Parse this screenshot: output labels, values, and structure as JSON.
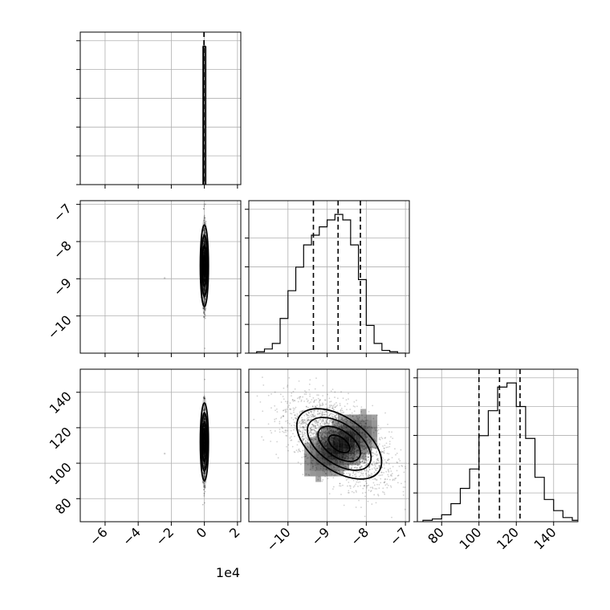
{
  "figure": {
    "offset_text": "1e4"
  },
  "chart_data": {
    "type": "corner",
    "parameters": [
      {
        "index": 0,
        "range": [
          -7.5,
          2.2
        ],
        "scale": 10000,
        "ticks": [
          -6,
          -4,
          -2,
          0,
          2
        ],
        "tick_labels": [
          "−6",
          "−4",
          "−2",
          "0",
          "2"
        ],
        "hist_bins": [
          -0.06,
          0.02
        ],
        "hist_counts": [
          1.0
        ],
        "quantiles": [
          -0.02,
          -0.02,
          -0.02
        ],
        "sample_center": 0.0,
        "sample_spread": 0.05
      },
      {
        "index": 1,
        "range": [
          -11.0,
          -6.9
        ],
        "ticks": [
          -10,
          -9,
          -8,
          -7
        ],
        "tick_labels": [
          "−10",
          "−9",
          "−8",
          "−7"
        ],
        "hist_bins": [
          -11.0,
          -10.8,
          -10.6,
          -10.4,
          -10.2,
          -10.0,
          -9.8,
          -9.6,
          -9.4,
          -9.2,
          -9.0,
          -8.8,
          -8.6,
          -8.4,
          -8.2,
          -8.0,
          -7.8,
          -7.6,
          -7.4,
          -7.2,
          -7.0
        ],
        "hist_counts": [
          0.0,
          0.01,
          0.03,
          0.07,
          0.25,
          0.45,
          0.62,
          0.78,
          0.85,
          0.91,
          0.96,
          1.0,
          0.96,
          0.78,
          0.53,
          0.2,
          0.07,
          0.02,
          0.01,
          0.0
        ],
        "quantiles": [
          -9.35,
          -8.72,
          -8.15
        ]
      },
      {
        "index": 2,
        "range": [
          67,
          153
        ],
        "ticks": [
          80,
          100,
          120,
          140
        ],
        "tick_labels": [
          "80",
          "100",
          "120",
          "140"
        ],
        "hist_bins": [
          70,
          75,
          80,
          85,
          90,
          95,
          100,
          105,
          110,
          115,
          120,
          125,
          130,
          135,
          140,
          145,
          150,
          155
        ],
        "hist_counts": [
          0.01,
          0.02,
          0.05,
          0.13,
          0.24,
          0.38,
          0.62,
          0.8,
          0.97,
          1.0,
          0.83,
          0.6,
          0.32,
          0.16,
          0.08,
          0.03,
          0.01
        ],
        "quantiles": [
          100,
          111,
          122
        ]
      }
    ],
    "joint_1_2": {
      "mean": [
        -8.7,
        112
      ],
      "sd": [
        0.65,
        12
      ],
      "correlation": -0.55,
      "n_points": 2500,
      "density_levels": [
        0.5,
        1.0,
        1.5,
        2.0
      ]
    },
    "grid": true
  }
}
